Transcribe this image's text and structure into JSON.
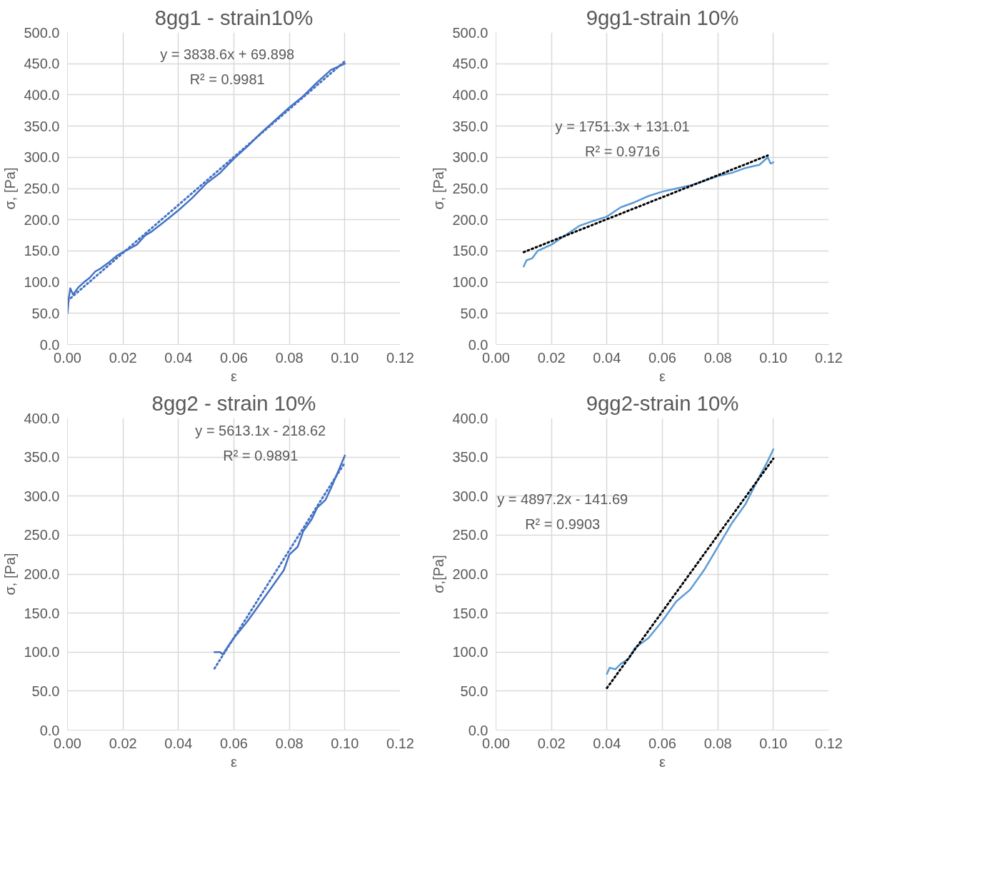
{
  "chart_data": [
    {
      "type": "line",
      "title": "8gg1 - strain10%",
      "xlabel": "ε",
      "ylabel": "σ, [Pa]",
      "grid": true,
      "marker": "none",
      "xlim": [
        0,
        0.12
      ],
      "ylim": [
        0,
        500
      ],
      "xticks": [
        {
          "value": 0,
          "label": "0.00"
        },
        {
          "value": 0.02,
          "label": "0.02"
        },
        {
          "value": 0.04,
          "label": "0.04"
        },
        {
          "value": 0.06,
          "label": "0.06"
        },
        {
          "value": 0.08,
          "label": "0.08"
        },
        {
          "value": 0.1,
          "label": "0.10"
        },
        {
          "value": 0.12,
          "label": "0.12"
        }
      ],
      "yticks": [
        {
          "value": 0,
          "label": "0.0"
        },
        {
          "value": 50,
          "label": "50.0"
        },
        {
          "value": 100,
          "label": "100.0"
        },
        {
          "value": 150,
          "label": "150.0"
        },
        {
          "value": 200,
          "label": "200.0"
        },
        {
          "value": 250,
          "label": "250.0"
        },
        {
          "value": 300,
          "label": "300.0"
        },
        {
          "value": 350,
          "label": "350.0"
        },
        {
          "value": 400,
          "label": "400.0"
        },
        {
          "value": 450,
          "label": "450.0"
        },
        {
          "value": 500,
          "label": "500.0"
        }
      ],
      "annotations": [
        "y = 3838.6x + 69.898",
        "R² = 0.9981"
      ],
      "series": [
        {
          "color": "#4472c4",
          "line_style": "solid",
          "x": [
            0,
            0.0005,
            0.001,
            0.002,
            0.004,
            0.006,
            0.008,
            0.01,
            0.012,
            0.015,
            0.018,
            0.02,
            0.025,
            0.028,
            0.03,
            0.035,
            0.04,
            0.045,
            0.05,
            0.055,
            0.06,
            0.065,
            0.07,
            0.075,
            0.08,
            0.085,
            0.09,
            0.095,
            0.1
          ],
          "values": [
            50,
            75,
            90,
            80,
            92,
            100,
            107,
            117,
            122,
            132,
            143,
            148,
            160,
            175,
            180,
            197,
            215,
            235,
            258,
            275,
            298,
            318,
            340,
            360,
            380,
            398,
            420,
            440,
            450
          ]
        },
        {
          "color": "#4472c4",
          "line_style": "dotted",
          "x": [
            0,
            0.1
          ],
          "values": [
            70,
            454
          ]
        }
      ]
    },
    {
      "type": "line",
      "title": "9gg1-strain 10%",
      "xlabel": "ε",
      "ylabel": "σ, [Pa]",
      "grid": true,
      "marker": "none",
      "xlim": [
        0,
        0.12
      ],
      "ylim": [
        0,
        500
      ],
      "xticks": [
        {
          "value": 0,
          "label": "0.00"
        },
        {
          "value": 0.02,
          "label": "0.02"
        },
        {
          "value": 0.04,
          "label": "0.04"
        },
        {
          "value": 0.06,
          "label": "0.06"
        },
        {
          "value": 0.08,
          "label": "0.08"
        },
        {
          "value": 0.1,
          "label": "0.10"
        },
        {
          "value": 0.12,
          "label": "0.12"
        }
      ],
      "yticks": [
        {
          "value": 0,
          "label": "0.0"
        },
        {
          "value": 50,
          "label": "50.0"
        },
        {
          "value": 100,
          "label": "100.0"
        },
        {
          "value": 150,
          "label": "150.0"
        },
        {
          "value": 200,
          "label": "200.0"
        },
        {
          "value": 250,
          "label": "250.0"
        },
        {
          "value": 300,
          "label": "300.0"
        },
        {
          "value": 350,
          "label": "350.0"
        },
        {
          "value": 400,
          "label": "400.0"
        },
        {
          "value": 450,
          "label": "450.0"
        },
        {
          "value": 500,
          "label": "500.0"
        }
      ],
      "annotations": [
        "y = 1751.3x + 131.01",
        "R² = 0.9716"
      ],
      "series": [
        {
          "color": "#5b9bd5",
          "line_style": "solid",
          "x": [
            0.01,
            0.011,
            0.013,
            0.015,
            0.02,
            0.025,
            0.03,
            0.035,
            0.04,
            0.045,
            0.05,
            0.055,
            0.06,
            0.065,
            0.07,
            0.075,
            0.08,
            0.085,
            0.09,
            0.095,
            0.098,
            0.099,
            0.1
          ],
          "values": [
            125,
            135,
            138,
            150,
            160,
            175,
            190,
            198,
            205,
            220,
            228,
            238,
            245,
            250,
            255,
            262,
            270,
            275,
            283,
            288,
            300,
            290,
            292
          ]
        },
        {
          "color": "#000000",
          "line_style": "dotted",
          "x": [
            0.01,
            0.098
          ],
          "values": [
            148,
            303
          ]
        }
      ]
    },
    {
      "type": "line",
      "title": "8gg2 - strain 10%",
      "xlabel": "ε",
      "ylabel": "σ, [Pa]",
      "grid": true,
      "marker": "none",
      "xlim": [
        0,
        0.12
      ],
      "ylim": [
        0,
        400
      ],
      "xticks": [
        {
          "value": 0,
          "label": "0.00"
        },
        {
          "value": 0.02,
          "label": "0.02"
        },
        {
          "value": 0.04,
          "label": "0.04"
        },
        {
          "value": 0.06,
          "label": "0.06"
        },
        {
          "value": 0.08,
          "label": "0.08"
        },
        {
          "value": 0.1,
          "label": "0.10"
        },
        {
          "value": 0.12,
          "label": "0.12"
        }
      ],
      "yticks": [
        {
          "value": 0,
          "label": "0.0"
        },
        {
          "value": 50,
          "label": "50.0"
        },
        {
          "value": 100,
          "label": "100.0"
        },
        {
          "value": 150,
          "label": "150.0"
        },
        {
          "value": 200,
          "label": "200.0"
        },
        {
          "value": 250,
          "label": "250.0"
        },
        {
          "value": 300,
          "label": "300.0"
        },
        {
          "value": 350,
          "label": "350.0"
        },
        {
          "value": 400,
          "label": "400.0"
        }
      ],
      "annotations": [
        "y = 5613.1x - 218.62",
        "R² = 0.9891"
      ],
      "series": [
        {
          "color": "#4472c4",
          "line_style": "solid",
          "x": [
            0.053,
            0.055,
            0.056,
            0.058,
            0.06,
            0.065,
            0.07,
            0.075,
            0.078,
            0.08,
            0.083,
            0.085,
            0.088,
            0.09,
            0.093,
            0.095,
            0.098,
            0.1
          ],
          "values": [
            100,
            100,
            97,
            108,
            118,
            140,
            165,
            190,
            205,
            225,
            235,
            255,
            270,
            285,
            295,
            310,
            335,
            352
          ]
        },
        {
          "color": "#4472c4",
          "line_style": "dotted",
          "x": [
            0.053,
            0.1
          ],
          "values": [
            79,
            343
          ]
        }
      ]
    },
    {
      "type": "line",
      "title": "9gg2-strain 10%",
      "xlabel": "ε",
      "ylabel": "σ,[Pa]",
      "grid": true,
      "marker": "none",
      "xlim": [
        0,
        0.12
      ],
      "ylim": [
        0,
        400
      ],
      "xticks": [
        {
          "value": 0,
          "label": "0.00"
        },
        {
          "value": 0.02,
          "label": "0.02"
        },
        {
          "value": 0.04,
          "label": "0.04"
        },
        {
          "value": 0.06,
          "label": "0.06"
        },
        {
          "value": 0.08,
          "label": "0.08"
        },
        {
          "value": 0.1,
          "label": "0.10"
        },
        {
          "value": 0.12,
          "label": "0.12"
        }
      ],
      "yticks": [
        {
          "value": 0,
          "label": "0.0"
        },
        {
          "value": 50,
          "label": "50.0"
        },
        {
          "value": 100,
          "label": "100.0"
        },
        {
          "value": 150,
          "label": "150.0"
        },
        {
          "value": 200,
          "label": "200.0"
        },
        {
          "value": 250,
          "label": "250.0"
        },
        {
          "value": 300,
          "label": "300.0"
        },
        {
          "value": 350,
          "label": "350.0"
        },
        {
          "value": 400,
          "label": "400.0"
        }
      ],
      "annotations": [
        "y = 4897.2x - 141.69",
        "R² = 0.9903"
      ],
      "series": [
        {
          "color": "#5b9bd5",
          "line_style": "solid",
          "x": [
            0.04,
            0.041,
            0.043,
            0.045,
            0.048,
            0.05,
            0.055,
            0.06,
            0.065,
            0.07,
            0.075,
            0.08,
            0.085,
            0.09,
            0.095,
            0.098,
            0.1
          ],
          "values": [
            72,
            80,
            78,
            85,
            92,
            105,
            118,
            140,
            165,
            180,
            205,
            235,
            265,
            290,
            325,
            345,
            360
          ]
        },
        {
          "color": "#000000",
          "line_style": "dotted",
          "x": [
            0.04,
            0.1
          ],
          "values": [
            54,
            348
          ]
        }
      ]
    }
  ]
}
